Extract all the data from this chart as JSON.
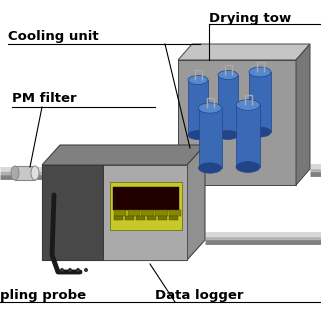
{
  "bg_color": "#ffffff",
  "labels": {
    "drying_tower": "Drying tow",
    "cooling_unit": "Cooling unit",
    "pm_filter": "PM filter",
    "sampling_probe": "pling probe",
    "data_logger": "Data logger"
  },
  "font_size": 9.5,
  "colors": {
    "box_gray_front": "#909090",
    "box_gray_top": "#b8b8b8",
    "box_gray_side": "#787878",
    "box_gray_front2": "#c0c0c0",
    "blue_cyl": "#3a6ab5",
    "blue_cyl_top": "#5588cc",
    "blue_cyl_dark": "#224488",
    "hook_gray": "#888888",
    "pipe_light": "#d0d0d0",
    "pipe_dark": "#909090",
    "pipe_mid": "#b8b8b8",
    "device_dark": "#505050",
    "device_right": "#909090",
    "device_top": "#707070",
    "device_front_right": "#b0b0b0",
    "screen_outer": "#c8c830",
    "screen_inner": "#181818",
    "cable_color": "#222222",
    "filt_body": "#c8c8c8",
    "filt_cap": "#e0e0e0",
    "black": "#000000"
  }
}
